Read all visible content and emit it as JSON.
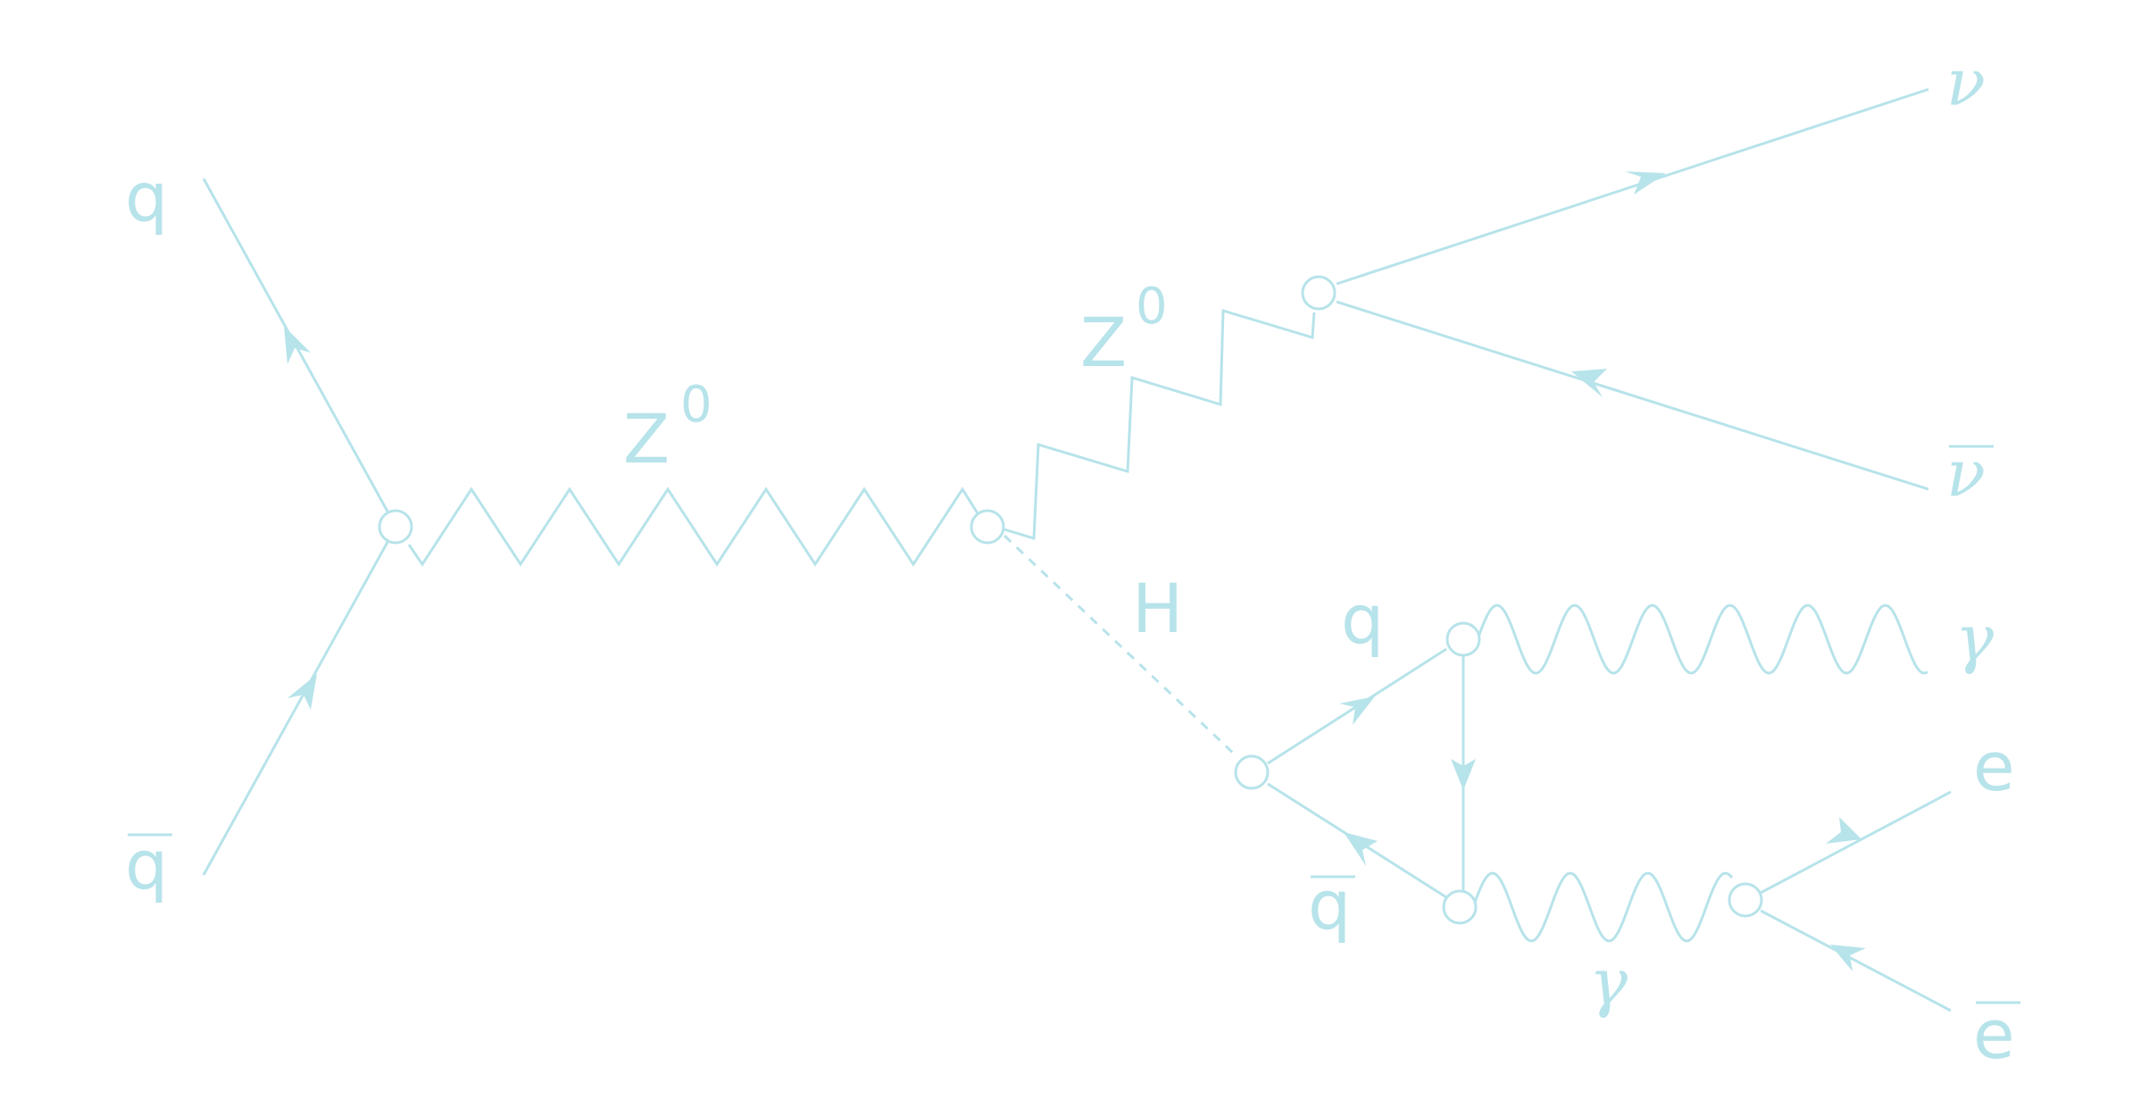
{
  "diagram": {
    "labels": {
      "q_in": "q",
      "qbar_in": "q",
      "z0_main": "Z",
      "z0_main_sup": "0",
      "z0_upper": "Z",
      "z0_upper_sup": "0",
      "higgs": "H",
      "nu": "ν",
      "nubar": "ν",
      "q_loop": "q",
      "qbar_loop": "q",
      "gamma_top": "γ",
      "gamma_bottom": "γ",
      "electron": "e",
      "positron": "e"
    },
    "colors": {
      "line": "#b7e3ea",
      "background": "#ffffff"
    }
  }
}
